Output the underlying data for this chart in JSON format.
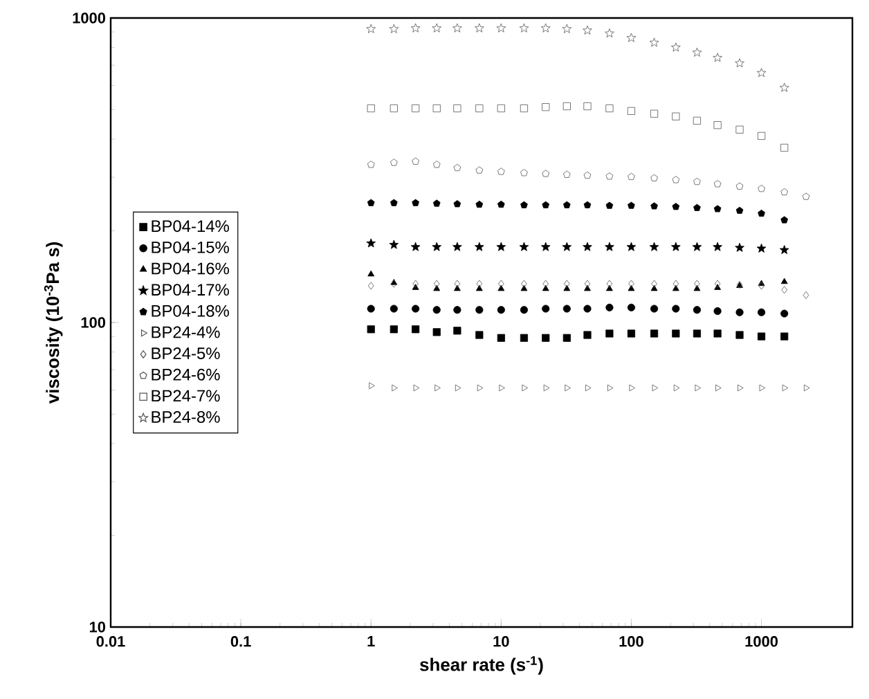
{
  "chart_data": {
    "type": "scatter",
    "xlabel": "shear rate (s$^{-1}$)",
    "ylabel": "viscosity (10$^{-3}$Pa s)",
    "log": "xy",
    "xlim": [
      0.01,
      5000
    ],
    "ylim": [
      10,
      1000
    ],
    "xticks": [
      0.01,
      0.1,
      1,
      10,
      100,
      1000
    ],
    "yticks": [
      10,
      100,
      1000
    ],
    "grid": false,
    "legend": "left",
    "x": [
      1,
      1.5,
      2.2,
      3.2,
      4.6,
      6.8,
      10,
      15,
      22,
      32,
      46,
      68,
      100,
      150,
      220,
      320,
      460,
      680,
      1000,
      1500,
      2200
    ],
    "series": [
      {
        "name": "BP04-14%",
        "color": "#000000",
        "marker": "square",
        "values": [
          95,
          95,
          95,
          93,
          94,
          91,
          89,
          89,
          89,
          89,
          91,
          92,
          92,
          92,
          92,
          92,
          92,
          91,
          90,
          90,
          null
        ]
      },
      {
        "name": "BP04-15%",
        "color": "#000000",
        "marker": "circle",
        "values": [
          111,
          111,
          111,
          110,
          110,
          110,
          110,
          110,
          111,
          111,
          111,
          112,
          112,
          111,
          111,
          110,
          109,
          108,
          108,
          107,
          null
        ]
      },
      {
        "name": "BP04-16%",
        "color": "#000000",
        "marker": "triangle",
        "values": [
          144,
          135,
          130,
          129,
          129,
          129,
          129,
          129,
          129,
          129,
          129,
          129,
          129,
          129,
          129,
          129,
          130,
          132,
          134,
          136,
          null
        ]
      },
      {
        "name": "BP04-17%",
        "color": "#000000",
        "marker": "star",
        "values": [
          182,
          180,
          177,
          177,
          177,
          177,
          177,
          177,
          177,
          177,
          177,
          177,
          177,
          177,
          177,
          177,
          177,
          176,
          175,
          173,
          null
        ]
      },
      {
        "name": "BP04-18%",
        "color": "#000000",
        "values": [
          247,
          247,
          247,
          246,
          245,
          244,
          244,
          243,
          243,
          243,
          243,
          242,
          242,
          241,
          240,
          238,
          236,
          233,
          228,
          217,
          null
        ]
      },
      {
        "name": "BP24-4%",
        "color": "#555555",
        "marker": "triangle-right",
        "values": [
          62,
          61,
          61,
          61,
          61,
          61,
          61,
          61,
          61,
          61,
          61,
          61,
          61,
          61,
          61,
          61,
          61,
          61,
          61,
          61,
          61
        ]
      },
      {
        "name": "BP24-5%",
        "color": "#555555",
        "marker": "diamond",
        "values": [
          132,
          134,
          134,
          134,
          134,
          134,
          134,
          134,
          134,
          134,
          134,
          134,
          134,
          134,
          134,
          134,
          134,
          133,
          132,
          128,
          123
        ]
      },
      {
        "name": "BP24-6%",
        "color": "#555555",
        "values": [
          330,
          335,
          338,
          330,
          322,
          316,
          313,
          310,
          308,
          306,
          304,
          302,
          301,
          298,
          294,
          290,
          285,
          280,
          275,
          268,
          259
        ]
      },
      {
        "name": "BP24-7%",
        "color": "#555555",
        "marker": "square",
        "values": [
          505,
          505,
          505,
          505,
          505,
          505,
          505,
          505,
          510,
          513,
          513,
          505,
          495,
          485,
          475,
          460,
          445,
          430,
          410,
          375,
          null
        ]
      },
      {
        "name": "BP24-8%",
        "color": "#555555",
        "marker": "star",
        "values": [
          920,
          920,
          925,
          925,
          925,
          925,
          925,
          925,
          925,
          920,
          910,
          890,
          860,
          830,
          800,
          770,
          740,
          710,
          660,
          590,
          null
        ]
      }
    ]
  }
}
